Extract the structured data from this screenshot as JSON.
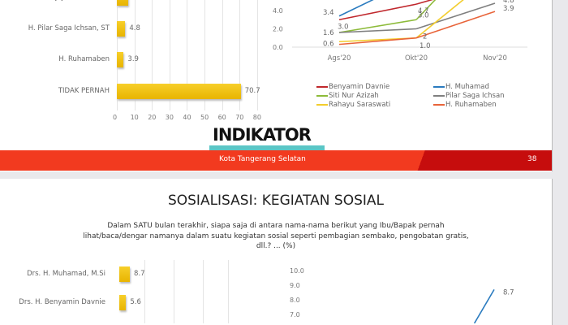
{
  "slide1": {
    "bar_chart": {
      "type": "bar",
      "categories": [
        "Djojohadikusumo",
        "H. Pilar Saga Ichsan, ST",
        "H. Ruhamaben",
        "TIDAK PERNAH"
      ],
      "values": [
        null,
        4.8,
        3.9,
        70.7
      ],
      "value_labels": [
        "",
        "4.8",
        "3.9",
        "70.7"
      ],
      "xlim": [
        0,
        80
      ],
      "ticks": [
        "0",
        "10",
        "20",
        "30",
        "40",
        "50",
        "60",
        "70",
        "80"
      ],
      "bar_color": "#f2c200"
    },
    "line_chart": {
      "type": "line",
      "x": [
        "Ags'20",
        "Okt'20",
        "Nov'20"
      ],
      "yticks": [
        "0.0",
        "2.0",
        "4.0"
      ],
      "ylim": [
        0,
        5
      ],
      "series": [
        {
          "name": "Benyamin Davnie",
          "color": "#c0282d",
          "values": [
            3.0,
            4.7,
            null
          ]
        },
        {
          "name": "H. Muhamad",
          "color": "#2a7bbf",
          "values": [
            3.4,
            null,
            null
          ]
        },
        {
          "name": "Siti Nur Azizah",
          "color": "#8dbb3a",
          "values": [
            1.6,
            3.0,
            null
          ]
        },
        {
          "name": "Pilar Saga Ichsan",
          "color": "#7f7f7f",
          "values": [
            1.6,
            2.0,
            4.8
          ]
        },
        {
          "name": "Rahayu Saraswati",
          "color": "#f3cd2c",
          "values": [
            0.6,
            1.0,
            null
          ]
        },
        {
          "name": "H. Ruhamaben",
          "color": "#e8643a",
          "values": [
            0.3,
            1.0,
            3.9
          ]
        }
      ],
      "data_labels": [
        {
          "text": "3.0",
          "s": 0,
          "i": 0
        },
        {
          "text": "4.7",
          "s": 0,
          "i": 1
        },
        {
          "text": "3.4",
          "s": 1,
          "i": 0
        },
        {
          "text": "1.6",
          "s": 2,
          "i": 0
        },
        {
          "text": "3.0",
          "s": 2,
          "i": 1
        },
        {
          "text": "2",
          "s": 3,
          "i": 1
        },
        {
          "text": "4.8",
          "s": 3,
          "i": 2
        },
        {
          "text": "0.6",
          "s": 4,
          "i": 0
        },
        {
          "text": "1.0",
          "s": 5,
          "i": 1
        },
        {
          "text": "3.9",
          "s": 5,
          "i": 2
        }
      ]
    },
    "logo": "INDIKATOR",
    "footer": {
      "text": "Kota Tangerang Selatan",
      "page": "38"
    }
  },
  "slide2": {
    "title": "SOSIALISASI: KEGIATAN SOSIAL",
    "subtitle": [
      "Dalam SATU bulan terakhir, siapa saja di antara nama-nama berikut yang Ibu/Bapak pernah",
      "lihat/baca/dengar namanya dalam suatu kegiatan sosial seperti pembagian sembako, pengobatan gratis,",
      "dll.? ... (%)"
    ],
    "bar_chart": {
      "type": "bar",
      "categories": [
        "Drs. H. Muhamad, M.Si",
        "Drs. H. Benyamin Davnie"
      ],
      "values": [
        8.7,
        5.6
      ],
      "value_labels": [
        "8.7",
        "5.6"
      ]
    },
    "line_chart": {
      "type": "line",
      "yticks": [
        "10.0",
        "9.0",
        "8.0",
        "7.0"
      ],
      "end_label": "8.7",
      "color": "#2a7bbf"
    }
  }
}
